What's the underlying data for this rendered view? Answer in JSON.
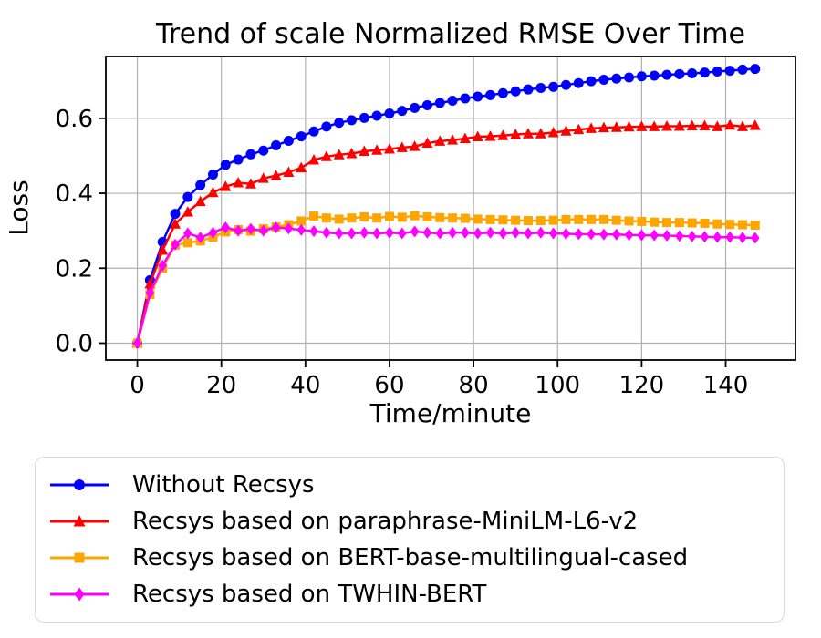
{
  "figure": {
    "title": "Trend of scale Normalized RMSE Over Time",
    "xlabel": "Time/minute",
    "ylabel": "Loss"
  },
  "chart_data": {
    "type": "line",
    "title": "Trend of scale Normalized RMSE Over Time",
    "xlabel": "Time/minute",
    "ylabel": "Loss",
    "grid": true,
    "legend_position": "below-left",
    "xlim": [
      -7.5,
      156.6
    ],
    "ylim": [
      -0.045,
      0.765
    ],
    "xticks": [
      0,
      20,
      40,
      60,
      80,
      100,
      120,
      140
    ],
    "xtick_labels": [
      "0",
      "20",
      "40",
      "60",
      "80",
      "100",
      "120",
      "140"
    ],
    "yticks": [
      0.0,
      0.2,
      0.4,
      0.6
    ],
    "ytick_labels": [
      "0.0",
      "0.2",
      "0.4",
      "0.6"
    ],
    "x": [
      0,
      3,
      6,
      9,
      12,
      15,
      18,
      21,
      24,
      27,
      30,
      33,
      36,
      39,
      42,
      45,
      48,
      51,
      54,
      57,
      60,
      63,
      66,
      69,
      72,
      75,
      78,
      81,
      84,
      87,
      90,
      93,
      96,
      99,
      102,
      105,
      108,
      111,
      114,
      117,
      120,
      123,
      126,
      129,
      132,
      135,
      138,
      141,
      144,
      147
    ],
    "series": [
      {
        "name": "Without Recsys",
        "color": "#0000ff",
        "marker": "circle",
        "values": [
          0.0,
          0.168,
          0.27,
          0.345,
          0.39,
          0.422,
          0.45,
          0.476,
          0.49,
          0.504,
          0.514,
          0.528,
          0.54,
          0.552,
          0.565,
          0.578,
          0.588,
          0.595,
          0.601,
          0.607,
          0.613,
          0.62,
          0.628,
          0.635,
          0.641,
          0.647,
          0.653,
          0.658,
          0.662,
          0.667,
          0.672,
          0.677,
          0.681,
          0.684,
          0.689,
          0.694,
          0.699,
          0.703,
          0.706,
          0.709,
          0.712,
          0.714,
          0.716,
          0.718,
          0.72,
          0.722,
          0.725,
          0.727,
          0.73,
          0.732
        ]
      },
      {
        "name": "Recsys based on paraphrase-MiniLM-L6-v2",
        "color": "#ff0000",
        "marker": "triangle",
        "values": [
          0.0,
          0.158,
          0.248,
          0.318,
          0.35,
          0.378,
          0.402,
          0.418,
          0.428,
          0.425,
          0.44,
          0.447,
          0.456,
          0.468,
          0.489,
          0.498,
          0.503,
          0.506,
          0.512,
          0.515,
          0.518,
          0.522,
          0.525,
          0.534,
          0.539,
          0.542,
          0.546,
          0.551,
          0.552,
          0.554,
          0.557,
          0.559,
          0.559,
          0.562,
          0.566,
          0.57,
          0.573,
          0.575,
          0.576,
          0.577,
          0.578,
          0.578,
          0.579,
          0.579,
          0.58,
          0.58,
          0.578,
          0.582,
          0.578,
          0.581
        ]
      },
      {
        "name": "Recsys based on BERT-base-multilingual-cased",
        "color": "#ffa500",
        "marker": "square",
        "values": [
          0.0,
          0.13,
          0.2,
          0.262,
          0.268,
          0.273,
          0.283,
          0.297,
          0.303,
          0.299,
          0.305,
          0.31,
          0.316,
          0.326,
          0.339,
          0.334,
          0.331,
          0.334,
          0.337,
          0.334,
          0.338,
          0.336,
          0.34,
          0.337,
          0.335,
          0.334,
          0.333,
          0.331,
          0.33,
          0.329,
          0.328,
          0.327,
          0.327,
          0.328,
          0.33,
          0.33,
          0.33,
          0.33,
          0.328,
          0.326,
          0.325,
          0.323,
          0.322,
          0.322,
          0.321,
          0.32,
          0.318,
          0.317,
          0.316,
          0.315
        ]
      },
      {
        "name": "Recsys based on TWHIN-BERT",
        "color": "#ff00ff",
        "marker": "diamond",
        "values": [
          0.0,
          0.134,
          0.207,
          0.263,
          0.293,
          0.282,
          0.295,
          0.309,
          0.3,
          0.305,
          0.3,
          0.309,
          0.306,
          0.302,
          0.299,
          0.295,
          0.293,
          0.293,
          0.295,
          0.293,
          0.295,
          0.293,
          0.298,
          0.295,
          0.293,
          0.295,
          0.295,
          0.293,
          0.295,
          0.293,
          0.295,
          0.293,
          0.295,
          0.293,
          0.292,
          0.291,
          0.291,
          0.29,
          0.29,
          0.289,
          0.288,
          0.288,
          0.287,
          0.286,
          0.285,
          0.284,
          0.283,
          0.283,
          0.282,
          0.281
        ]
      }
    ],
    "style": {
      "grid_color": "#b0b0b0",
      "spine_color": "#000000",
      "background": "#ffffff"
    }
  }
}
